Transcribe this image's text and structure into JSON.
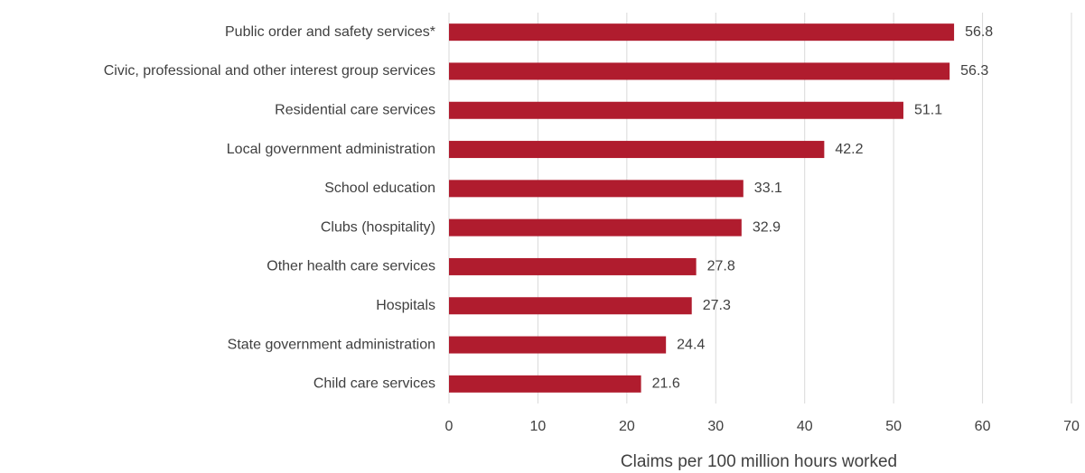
{
  "chart_data": {
    "type": "bar",
    "horizontal": true,
    "x_label": "Claims per 100 million hours worked",
    "categories": [
      "Public order and safety services*",
      "Civic, professional and other interest group services",
      "Residential care services",
      "Local government administration",
      "School education",
      "Clubs (hospitality)",
      "Other health care services",
      "Hospitals",
      "State government administration",
      "Child care services"
    ],
    "values": [
      56.8,
      56.3,
      51.1,
      42.2,
      33.1,
      32.9,
      27.8,
      27.3,
      24.4,
      21.6
    ],
    "color": "#b01c2e",
    "xlim": [
      0,
      70
    ],
    "xticks": [
      0,
      10,
      20,
      30,
      40,
      50,
      60,
      70
    ],
    "grid": true
  }
}
